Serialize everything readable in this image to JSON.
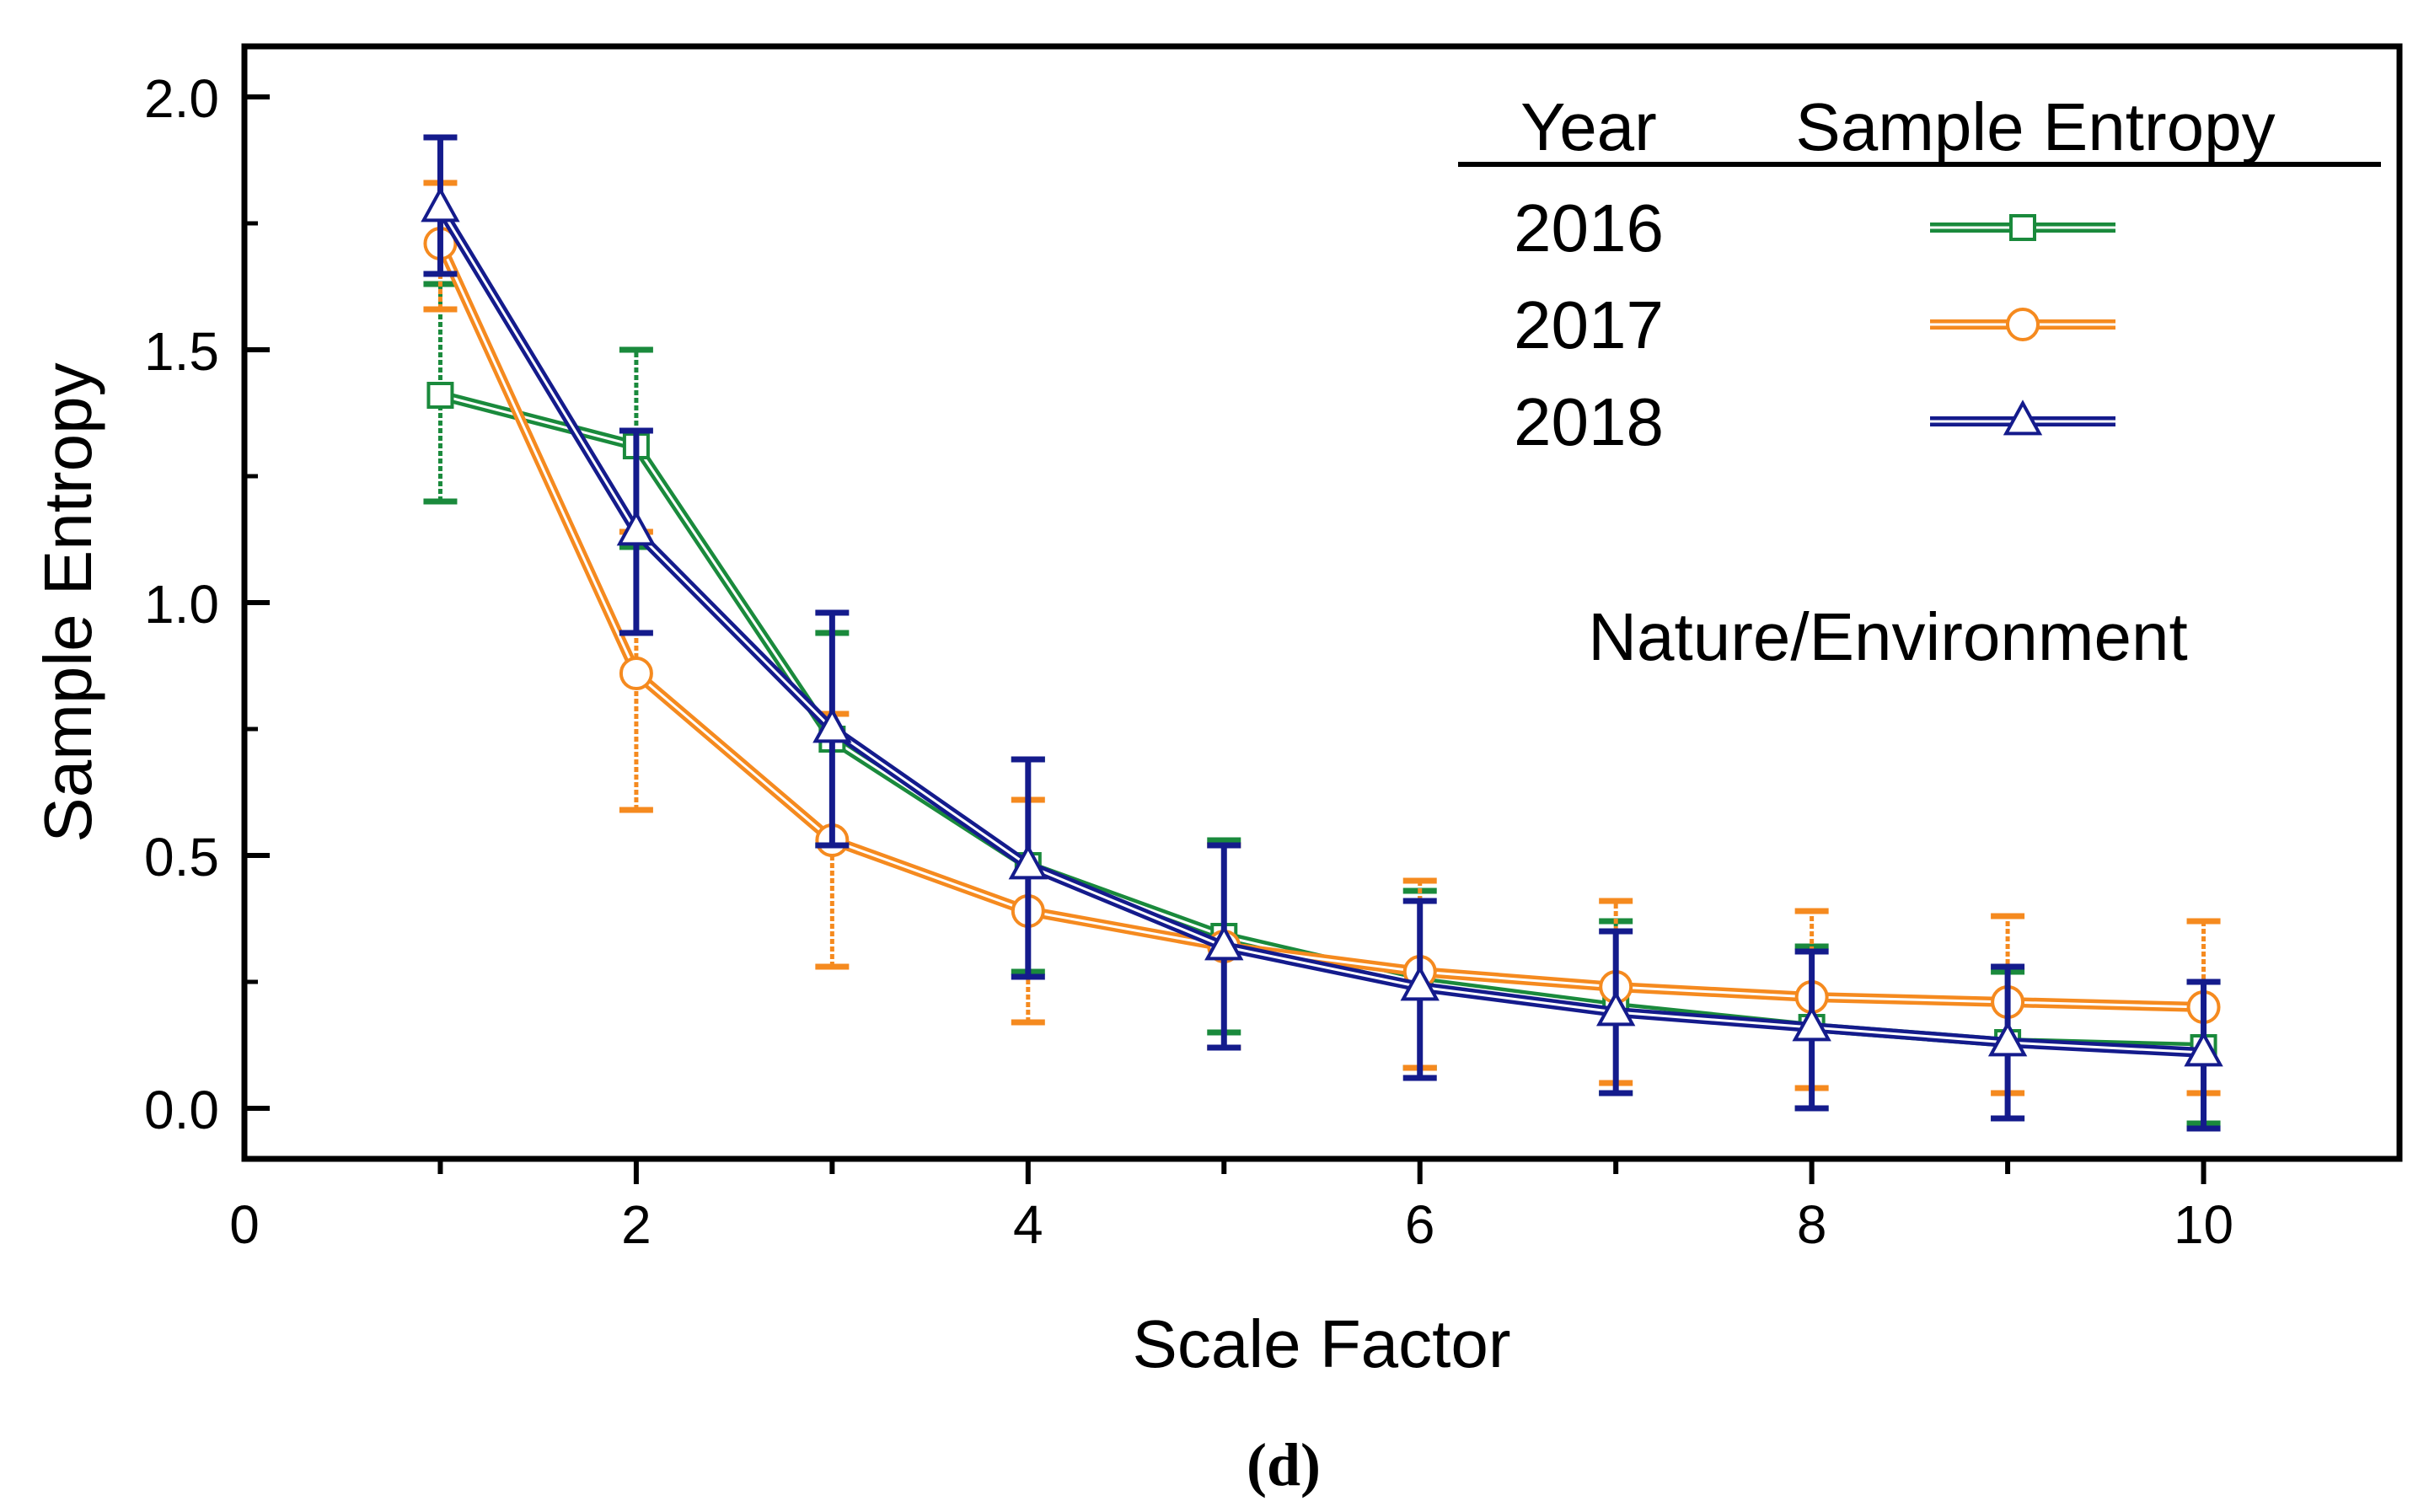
{
  "chart_data": {
    "type": "line",
    "subtitle": "(d)",
    "xlabel": "Scale Factor",
    "ylabel": "Sample Entropy",
    "xlim": [
      0,
      11
    ],
    "ylim": [
      -0.1,
      2.1
    ],
    "xticks": [
      0,
      2,
      4,
      6,
      8,
      10
    ],
    "yticks": [
      0.0,
      0.5,
      1.0,
      1.5,
      2.0
    ],
    "ytick_labels": [
      "0.0",
      "0.5",
      "1.0",
      "1.5",
      "2.0"
    ],
    "grid": false,
    "annotation": "Nature/Environment",
    "legend": {
      "position": "top-right",
      "header_left": "Year",
      "header_right": "Sample Entropy"
    },
    "x": [
      1,
      2,
      3,
      4,
      5,
      6,
      7,
      8,
      9,
      10
    ],
    "series": [
      {
        "name": "2016",
        "color": "#1a8a3c",
        "marker": "square",
        "values": [
          1.41,
          1.31,
          0.73,
          0.48,
          0.34,
          0.25,
          0.2,
          0.16,
          0.13,
          0.12
        ],
        "err_low": [
          1.2,
          1.11,
          0.52,
          0.27,
          0.15,
          0.08,
          0.03,
          0.0,
          -0.02,
          -0.03
        ],
        "err_high": [
          1.63,
          1.5,
          0.94,
          0.69,
          0.53,
          0.43,
          0.37,
          0.32,
          0.27,
          0.25
        ]
      },
      {
        "name": "2017",
        "color": "#f58a1f",
        "marker": "circle",
        "values": [
          1.71,
          0.86,
          0.53,
          0.39,
          0.32,
          0.27,
          0.24,
          0.22,
          0.21,
          0.2
        ],
        "err_low": [
          1.58,
          0.59,
          0.28,
          0.17,
          0.12,
          0.08,
          0.05,
          0.04,
          0.03,
          0.03
        ],
        "err_high": [
          1.83,
          1.14,
          0.78,
          0.61,
          0.52,
          0.45,
          0.41,
          0.39,
          0.38,
          0.37
        ]
      },
      {
        "name": "2018",
        "color": "#141b8c",
        "marker": "triangle",
        "values": [
          1.78,
          1.14,
          0.75,
          0.48,
          0.32,
          0.24,
          0.19,
          0.16,
          0.13,
          0.11
        ],
        "err_low": [
          1.65,
          0.94,
          0.52,
          0.26,
          0.12,
          0.06,
          0.03,
          0.0,
          -0.02,
          -0.04
        ],
        "err_high": [
          1.92,
          1.34,
          0.98,
          0.69,
          0.52,
          0.41,
          0.35,
          0.31,
          0.28,
          0.25
        ]
      }
    ]
  }
}
